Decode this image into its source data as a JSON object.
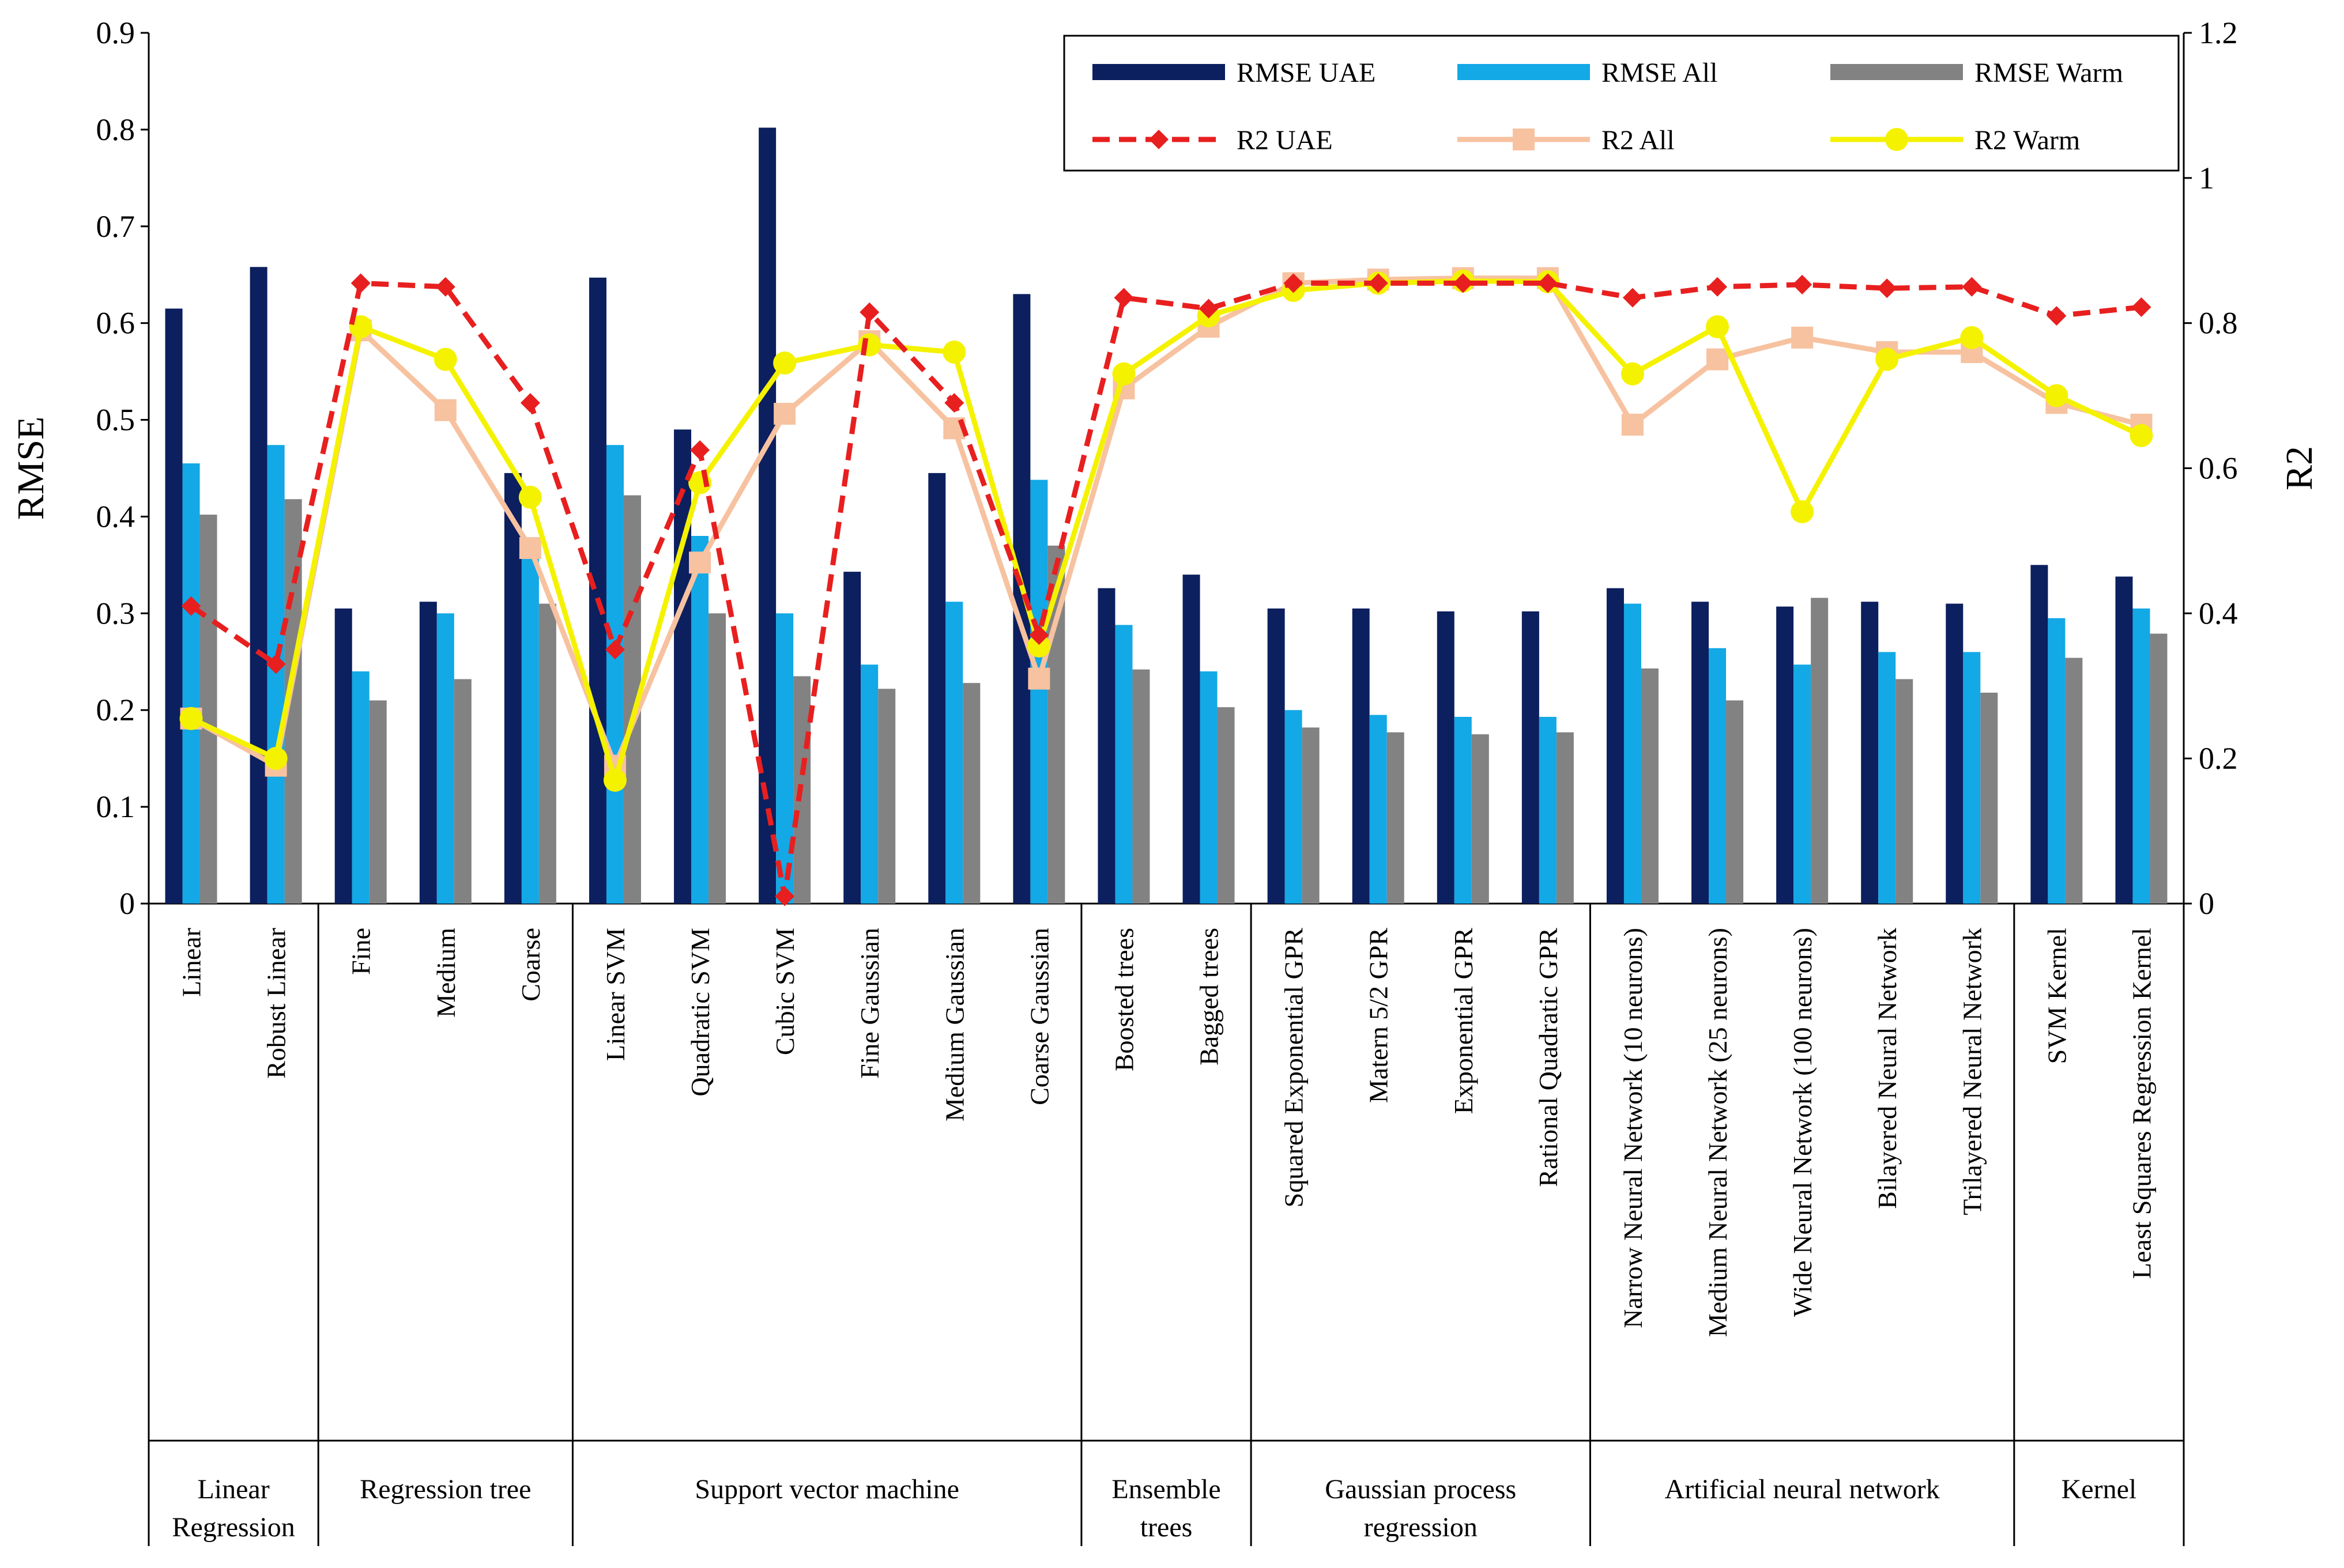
{
  "chart_data": {
    "type": "bar+line (dual axis)",
    "y_left": {
      "label": "RMSE",
      "range": [
        0,
        0.9
      ],
      "ticks": [
        "0",
        "0.1",
        "0.2",
        "0.3",
        "0.4",
        "0.5",
        "0.6",
        "0.7",
        "0.8",
        "0.9"
      ]
    },
    "y_right": {
      "label": "R2",
      "range": [
        0,
        1.2
      ],
      "ticks": [
        "0",
        "0.2",
        "0.4",
        "0.6",
        "0.8",
        "1",
        "1.2"
      ]
    },
    "groups": [
      {
        "name": "Linear Regression",
        "lines": [
          "Linear",
          "Regression"
        ],
        "size": 2
      },
      {
        "name": "Regression tree",
        "lines": [
          "Regression tree"
        ],
        "size": 3
      },
      {
        "name": "Support vector machine",
        "lines": [
          "Support vector machine"
        ],
        "size": 6
      },
      {
        "name": "Ensemble trees",
        "lines": [
          "Ensemble",
          "trees"
        ],
        "size": 2
      },
      {
        "name": "Gaussian process regression",
        "lines": [
          "Gaussian process",
          "regression"
        ],
        "size": 4
      },
      {
        "name": "Artificial neural network",
        "lines": [
          "Artificial neural network"
        ],
        "size": 5
      },
      {
        "name": "Kernel",
        "lines": [
          "Kernel"
        ],
        "size": 2
      }
    ],
    "categories": [
      "Linear",
      "Robust Linear",
      "Fine",
      "Medium",
      "Coarse",
      "Linear SVM",
      "Quadratic SVM",
      "Cubic SVM",
      "Fine Gaussian",
      "Medium Gaussian",
      "Coarse Gaussian",
      "Boosted trees",
      "Bagged trees",
      "Squared Exponential GPR",
      "Matern 5/2 GPR",
      "Exponential GPR",
      "Rational Quadratic GPR",
      "Narrow Neural Network (10 neurons)",
      "Medium Neural Network (25 neurons)",
      "Wide Neural Network (100 neurons)",
      "Bilayered Neural Network",
      "Trilayered Neural Network",
      "SVM Kernel",
      "Least Squares Regression Kernel"
    ],
    "bar_series": [
      {
        "name": "RMSE UAE",
        "color": "#0c1f5e",
        "values": [
          0.615,
          0.658,
          0.305,
          0.312,
          0.445,
          0.647,
          0.49,
          0.802,
          0.343,
          0.445,
          0.63,
          0.326,
          0.34,
          0.305,
          0.305,
          0.302,
          0.302,
          0.326,
          0.312,
          0.307,
          0.312,
          0.31,
          0.35,
          0.338
        ]
      },
      {
        "name": "RMSE All",
        "color": "#13a8e6",
        "values": [
          0.455,
          0.474,
          0.24,
          0.3,
          0.36,
          0.474,
          0.38,
          0.3,
          0.247,
          0.312,
          0.438,
          0.288,
          0.24,
          0.2,
          0.195,
          0.193,
          0.193,
          0.31,
          0.264,
          0.247,
          0.26,
          0.26,
          0.295,
          0.305
        ]
      },
      {
        "name": "RMSE Warm",
        "color": "#828282",
        "values": [
          0.402,
          0.418,
          0.21,
          0.232,
          0.31,
          0.422,
          0.3,
          0.235,
          0.222,
          0.228,
          0.37,
          0.242,
          0.203,
          0.182,
          0.177,
          0.175,
          0.177,
          0.243,
          0.21,
          0.316,
          0.232,
          0.218,
          0.254,
          0.279
        ]
      }
    ],
    "line_series": [
      {
        "name": "R2 UAE",
        "color": "#e81f1f",
        "style": "dashed",
        "marker": "diamond",
        "values": [
          0.41,
          0.33,
          0.855,
          0.85,
          0.69,
          0.35,
          0.625,
          0.01,
          0.815,
          0.69,
          0.37,
          0.835,
          0.82,
          0.855,
          0.855,
          0.855,
          0.855,
          0.835,
          0.85,
          0.853,
          0.848,
          0.85,
          0.81,
          0.822
        ]
      },
      {
        "name": "R2 All",
        "color": "#f7c2a0",
        "style": "solid",
        "marker": "square",
        "values": [
          0.255,
          0.19,
          0.79,
          0.68,
          0.49,
          0.19,
          0.47,
          0.675,
          0.775,
          0.655,
          0.31,
          0.71,
          0.795,
          0.855,
          0.86,
          0.862,
          0.862,
          0.66,
          0.75,
          0.78,
          0.76,
          0.76,
          0.69,
          0.66
        ]
      },
      {
        "name": "R2 Warm",
        "color": "#f5f200",
        "style": "solid",
        "marker": "circle",
        "values": [
          0.255,
          0.2,
          0.795,
          0.75,
          0.56,
          0.17,
          0.58,
          0.745,
          0.77,
          0.76,
          0.355,
          0.73,
          0.81,
          0.845,
          0.855,
          0.858,
          0.857,
          0.73,
          0.795,
          0.54,
          0.75,
          0.78,
          0.7,
          0.645
        ]
      }
    ],
    "legend": {
      "placement": "top-right",
      "entries": [
        "RMSE UAE",
        "RMSE All",
        "RMSE Warm",
        "R2 UAE",
        "R2 All",
        "R2 Warm"
      ]
    },
    "grid": false
  }
}
